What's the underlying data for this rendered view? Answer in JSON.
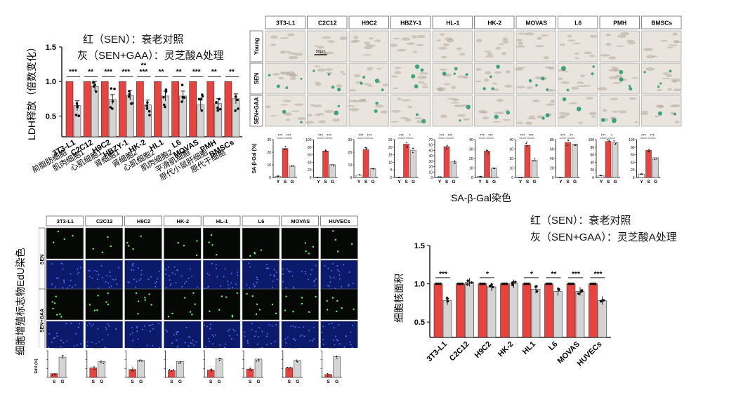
{
  "legend_red": "红（SEN）：衰老对照",
  "legend_gray": "灰（SEN+GAA）：灵芝酸A处理",
  "colors": {
    "red": "#e8433f",
    "gray": "#d4d4d4",
    "axis": "#222222",
    "green": "#1d9a6c"
  },
  "chart_data": [
    {
      "type": "bar",
      "ylabel": "LDH释放（倍数变化）",
      "ylim": [
        0.2,
        1.5
      ],
      "yticks": [
        "0.5",
        "1.0",
        "1.5"
      ],
      "categories": [
        "3T3-L1\n前脂肪细胞",
        "C2C12\n肌肉细胞1",
        "H9C2\n心肌细胞1",
        "HBZY-1\n肾细胞1",
        "HK-2\n肾细胞2",
        "HL1\n心肌细胞2",
        "L6\n肌肉细胞2",
        "MOVAS\n平滑肌细胞",
        "PMH\n原代小鼠肝细胞",
        "BMSCs\n原代干细胞"
      ],
      "series": [
        {
          "values": [
            1.0,
            1.0,
            1.0,
            1.0,
            1.0,
            1.0,
            1.0,
            1.0,
            1.0,
            1.0
          ]
        },
        {
          "values": [
            0.65,
            0.93,
            0.74,
            0.8,
            0.66,
            0.79,
            0.79,
            0.66,
            0.68,
            0.75
          ]
        }
      ],
      "significance": [
        "***",
        "**",
        "***",
        "***",
        "** ***",
        "**",
        "**",
        "***",
        "**",
        "**"
      ]
    },
    {
      "type": "bar",
      "title": "SA-β-Gal染色",
      "ylabel": "SA-β-Gal (%)",
      "xticks": [
        "Y",
        "S",
        "G"
      ],
      "panels": [
        {
          "name": "3T3-L1",
          "ymax": 30,
          "yticks": [
            "0",
            "10",
            "20",
            "30"
          ],
          "values": [
            1,
            23,
            9
          ],
          "sig": [
            "***",
            "***"
          ]
        },
        {
          "name": "C2C12",
          "ymax": 100,
          "yticks": [
            "0",
            "20",
            "40",
            "60",
            "80",
            "100"
          ],
          "values": [
            0,
            70,
            34
          ],
          "sig": [
            "***",
            "***"
          ]
        },
        {
          "name": "H9C2",
          "ymax": 30,
          "yticks": [
            "0",
            "10",
            "20",
            "30"
          ],
          "values": [
            2,
            22,
            7
          ],
          "sig": [
            "***",
            "***"
          ]
        },
        {
          "name": "HBZY-1",
          "ymax": 25,
          "yticks": [
            "0",
            "5",
            "10",
            "15",
            "20",
            "25"
          ],
          "values": [
            0,
            22,
            18
          ],
          "sig": [
            "***",
            "*"
          ]
        },
        {
          "name": "HL-1",
          "ymax": 70,
          "yticks": [
            "0",
            "10",
            "20",
            "30",
            "40",
            "50",
            "60",
            "70"
          ],
          "values": [
            1,
            57,
            29
          ],
          "sig": [
            "***",
            "***"
          ]
        },
        {
          "name": "HK-2",
          "ymax": 40,
          "yticks": [
            "0",
            "10",
            "20",
            "30",
            "40"
          ],
          "values": [
            1,
            28,
            10
          ],
          "sig": [
            "***",
            "***"
          ]
        },
        {
          "name": "MOVAS",
          "ymax": 40,
          "yticks": [
            "0",
            "10",
            "20",
            "30",
            "40"
          ],
          "values": [
            0,
            34,
            18
          ],
          "sig": [
            "***",
            "***"
          ]
        },
        {
          "name": "L6",
          "ymax": 80,
          "yticks": [
            "0",
            "20",
            "40",
            "60",
            "80"
          ],
          "values": [
            0,
            74,
            70
          ],
          "sig": [
            "***",
            "**"
          ]
        },
        {
          "name": "PMH",
          "ymax": 100,
          "yticks": [
            "0",
            "20",
            "40",
            "60",
            "80",
            "100"
          ],
          "values": [
            5,
            95,
            92
          ],
          "sig": [
            "***",
            "*"
          ]
        },
        {
          "name": "BMSCs",
          "ymax": 100,
          "yticks": [
            "0",
            "20",
            "40",
            "60",
            "80",
            "100"
          ],
          "values": [
            9,
            72,
            52
          ],
          "sig": [
            "***",
            "***"
          ]
        }
      ]
    },
    {
      "type": "bar",
      "ylabel": "细胞增殖标志物EdU染色",
      "ylabel_small": "EdU (%)",
      "xticks": [
        "S",
        "G"
      ],
      "panels": [
        {
          "name": "3T3-L1",
          "values": [
            15,
            28
          ],
          "sig": "*"
        },
        {
          "name": "C2C12",
          "values": [
            11.5,
            13.2
          ],
          "sig": "*"
        },
        {
          "name": "H9C2",
          "values": [
            8.1,
            10.5
          ],
          "sig": "*"
        },
        {
          "name": "HK-2",
          "values": [
            9.8,
            12.2
          ],
          "sig": "*"
        },
        {
          "name": "HL-1",
          "values": [
            11.2,
            14.5
          ],
          "sig": "*"
        },
        {
          "name": "L6",
          "values": [
            12.5,
            15.5
          ],
          "sig": "*"
        },
        {
          "name": "MOVAS",
          "values": [
            23,
            26
          ],
          "sig": "*"
        },
        {
          "name": "HUVECs",
          "values": [
            11,
            23
          ],
          "sig": "*"
        }
      ]
    },
    {
      "type": "bar",
      "ylabel": "细胞核面积",
      "ylim": [
        0.3,
        1.5
      ],
      "yticks": [
        "0.5",
        "1.0",
        "1.5"
      ],
      "categories": [
        "3T3-L1",
        "C2C12",
        "H9C2",
        "HK-2",
        "HL1",
        "L6",
        "MOVAS",
        "HUVECs"
      ],
      "series": [
        {
          "values": [
            1.0,
            1.0,
            1.0,
            1.0,
            1.0,
            1.0,
            1.0,
            1.0
          ]
        },
        {
          "values": [
            0.78,
            1.02,
            0.96,
            1.0,
            0.93,
            0.9,
            0.9,
            0.78
          ]
        }
      ],
      "significance": [
        "***",
        "",
        "*",
        "",
        "*",
        "**",
        "***",
        "***"
      ]
    }
  ],
  "micro_gal": {
    "rows": [
      "Young",
      "SEN",
      "SEN+GAA"
    ],
    "scale": "50μm",
    "cells": [
      "3T3-L1",
      "C2C12",
      "H9C2",
      "HBZY-1",
      "HL-1",
      "HK-2",
      "MOVAS",
      "L6",
      "PMH",
      "BMSCs"
    ]
  },
  "micro_edu": {
    "rows": [
      "SEN",
      "SEN+GAA"
    ],
    "cells": [
      "3T3-L1",
      "C2C12",
      "H9C2",
      "HK-2",
      "HL-1",
      "L6",
      "MOVAS",
      "HUVECs"
    ]
  }
}
